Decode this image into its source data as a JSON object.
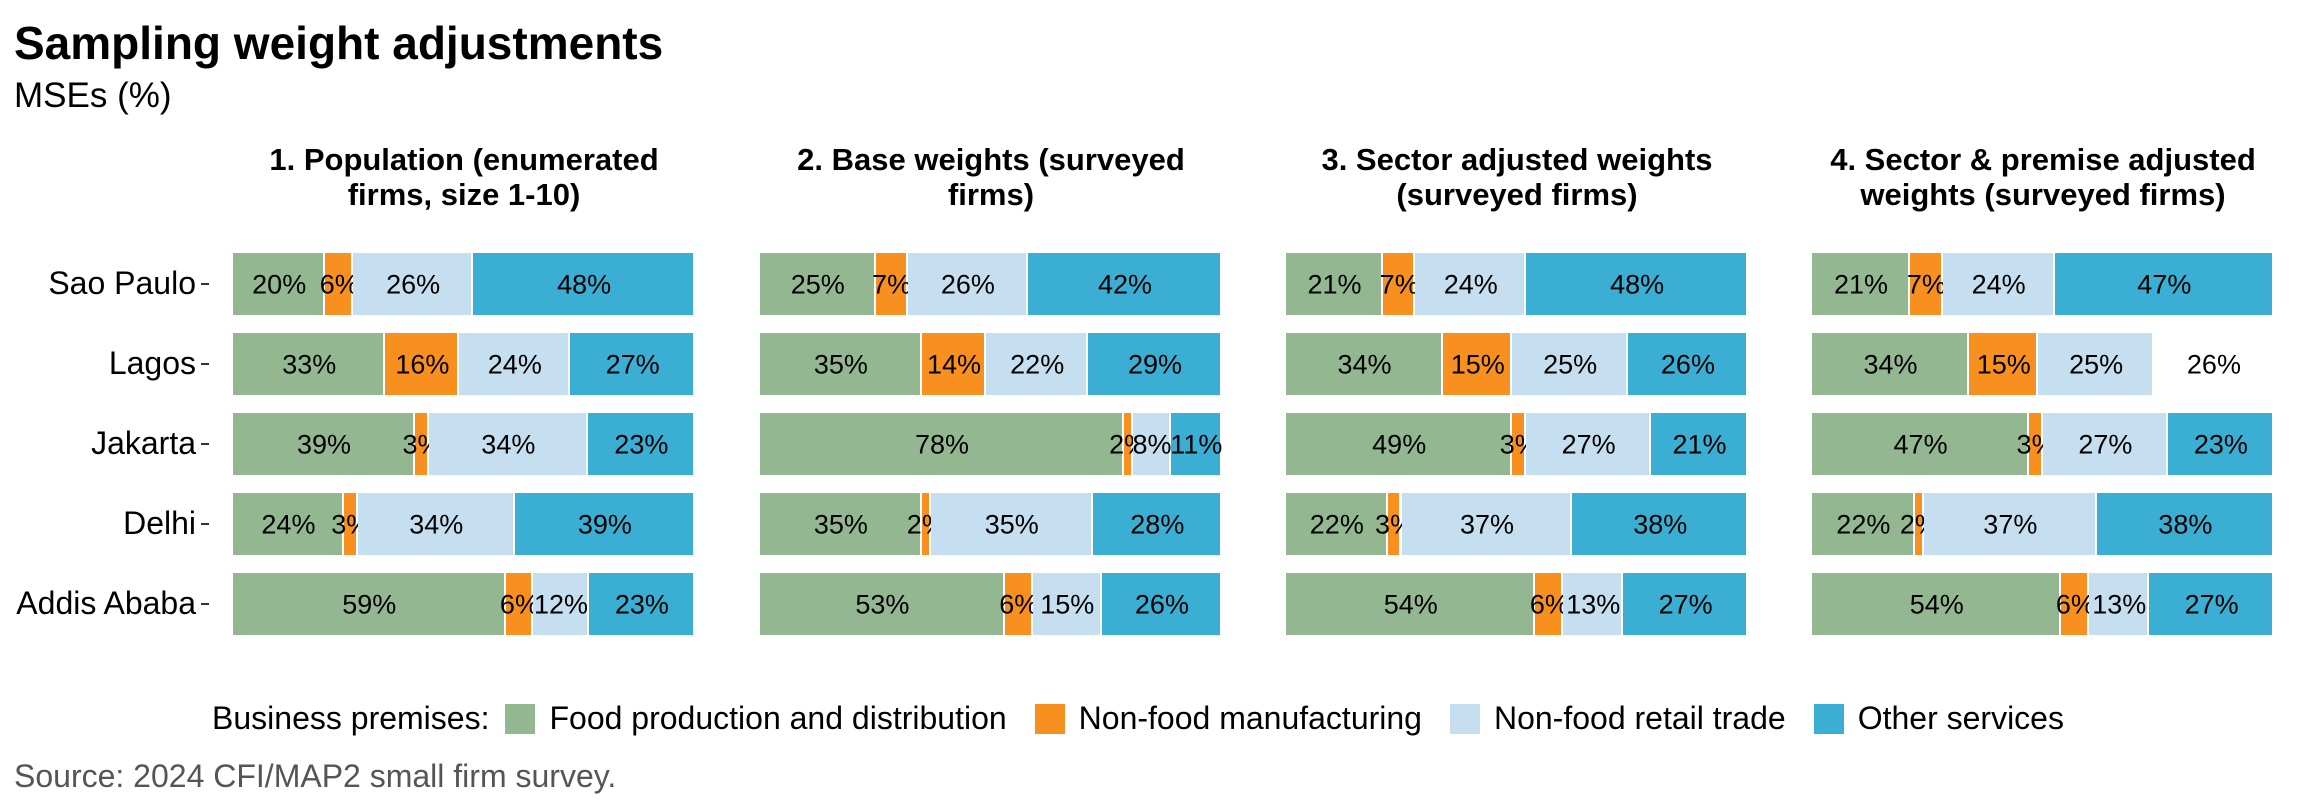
{
  "title": "Sampling weight adjustments",
  "subtitle": "MSEs (%)",
  "caption": "Source: 2024 CFI/MAP2 small firm survey.",
  "colors": {
    "Food production and distribution": "#93b891",
    "Non-food manufacturing": "#f7901e",
    "Non-food retail trade": "#c5dff0",
    "Other services": "#3aafd3"
  },
  "legend": {
    "title": "Business premises:",
    "items": [
      "Food production and distribution",
      "Non-food manufacturing",
      "Non-food retail trade",
      "Other services"
    ]
  },
  "chart_data": {
    "type": "bar",
    "orientation": "horizontal",
    "stacked": true,
    "xlim": [
      0,
      100
    ],
    "categories": [
      "Sao Paulo",
      "Lagos",
      "Jakarta",
      "Delhi",
      "Addis Ababa"
    ],
    "series_names": [
      "Food production and distribution",
      "Non-food manufacturing",
      "Non-food retail trade",
      "Other services"
    ],
    "facets": [
      {
        "title_lines": [
          "1. Population (enumerated",
          "firms, size 1-10)"
        ],
        "values": [
          [
            20,
            6,
            26,
            48
          ],
          [
            33,
            16,
            24,
            27
          ],
          [
            39,
            3,
            34,
            23
          ],
          [
            24,
            3,
            34,
            39
          ],
          [
            59,
            6,
            12,
            23
          ]
        ]
      },
      {
        "title_lines": [
          "2. Base weights (surveyed",
          "firms)"
        ],
        "values": [
          [
            25,
            7,
            26,
            42
          ],
          [
            35,
            14,
            22,
            29
          ],
          [
            78,
            2,
            8,
            11
          ],
          [
            35,
            2,
            35,
            28
          ],
          [
            53,
            6,
            15,
            26
          ]
        ]
      },
      {
        "title_lines": [
          "3. Sector adjusted weights",
          "(surveyed firms)"
        ],
        "values": [
          [
            21,
            7,
            24,
            48
          ],
          [
            34,
            15,
            25,
            26
          ],
          [
            49,
            3,
            27,
            21
          ],
          [
            22,
            3,
            37,
            38
          ],
          [
            54,
            6,
            13,
            27
          ]
        ]
      },
      {
        "title_lines": [
          "4. Sector & premise adjusted",
          "weights (surveyed firms)"
        ],
        "values": [
          [
            21,
            7,
            24,
            47
          ],
          [
            34,
            15,
            25,
            26
          ],
          [
            47,
            3,
            27,
            23
          ],
          [
            22,
            2,
            37,
            38
          ],
          [
            54,
            6,
            13,
            27
          ]
        ],
        "hidden_segments": [
          [
            1,
            3
          ]
        ]
      }
    ]
  }
}
